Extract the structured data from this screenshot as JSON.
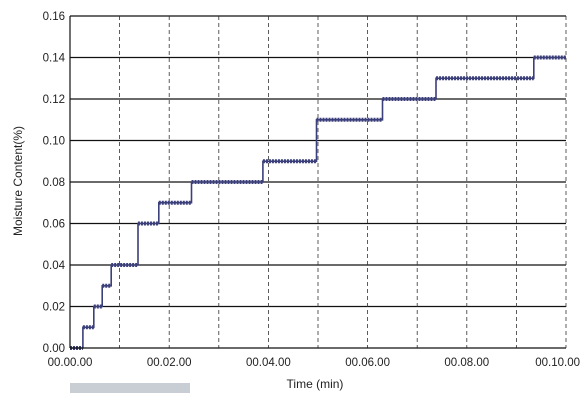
{
  "chart_data": {
    "type": "line",
    "title": "",
    "xlabel": "Time (min)",
    "ylabel": "Moisture Content(%)",
    "xlim": [
      0,
      0.1
    ],
    "ylim": [
      0,
      0.16
    ],
    "x_ticks": [
      0,
      0.02,
      0.04,
      0.06,
      0.08,
      0.1
    ],
    "x_tick_labels": [
      "00.00.00",
      "00.02.00",
      "00.04.00",
      "00.06.00",
      "00.08.00",
      "00.10.00"
    ],
    "x_minor_gridlines": [
      0.01,
      0.03,
      0.05,
      0.07,
      0.09
    ],
    "y_ticks": [
      0,
      0.02,
      0.04,
      0.06,
      0.08,
      0.1,
      0.12,
      0.14,
      0.16
    ],
    "y_tick_labels": [
      "0.00",
      "0.02",
      "0.04",
      "0.06",
      "0.08",
      "0.10",
      "0.12",
      "0.14",
      "0.16"
    ],
    "grid": true,
    "legend": "none",
    "series": [
      {
        "color": "#3b3f7a",
        "points": [
          [
            0.0,
            0.0
          ],
          [
            0.0026,
            0.0
          ],
          [
            0.0026,
            0.01
          ],
          [
            0.0048,
            0.01
          ],
          [
            0.0048,
            0.02
          ],
          [
            0.0065,
            0.02
          ],
          [
            0.0065,
            0.03
          ],
          [
            0.0083,
            0.03
          ],
          [
            0.0083,
            0.04
          ],
          [
            0.0137,
            0.04
          ],
          [
            0.0137,
            0.06
          ],
          [
            0.0179,
            0.06
          ],
          [
            0.0179,
            0.07
          ],
          [
            0.0245,
            0.07
          ],
          [
            0.0245,
            0.08
          ],
          [
            0.0389,
            0.08
          ],
          [
            0.0389,
            0.09
          ],
          [
            0.0497,
            0.09
          ],
          [
            0.0497,
            0.11
          ],
          [
            0.063,
            0.11
          ],
          [
            0.063,
            0.12
          ],
          [
            0.0738,
            0.12
          ],
          [
            0.0738,
            0.13
          ],
          [
            0.0935,
            0.13
          ],
          [
            0.0935,
            0.14
          ],
          [
            0.1,
            0.14
          ]
        ]
      }
    ]
  }
}
